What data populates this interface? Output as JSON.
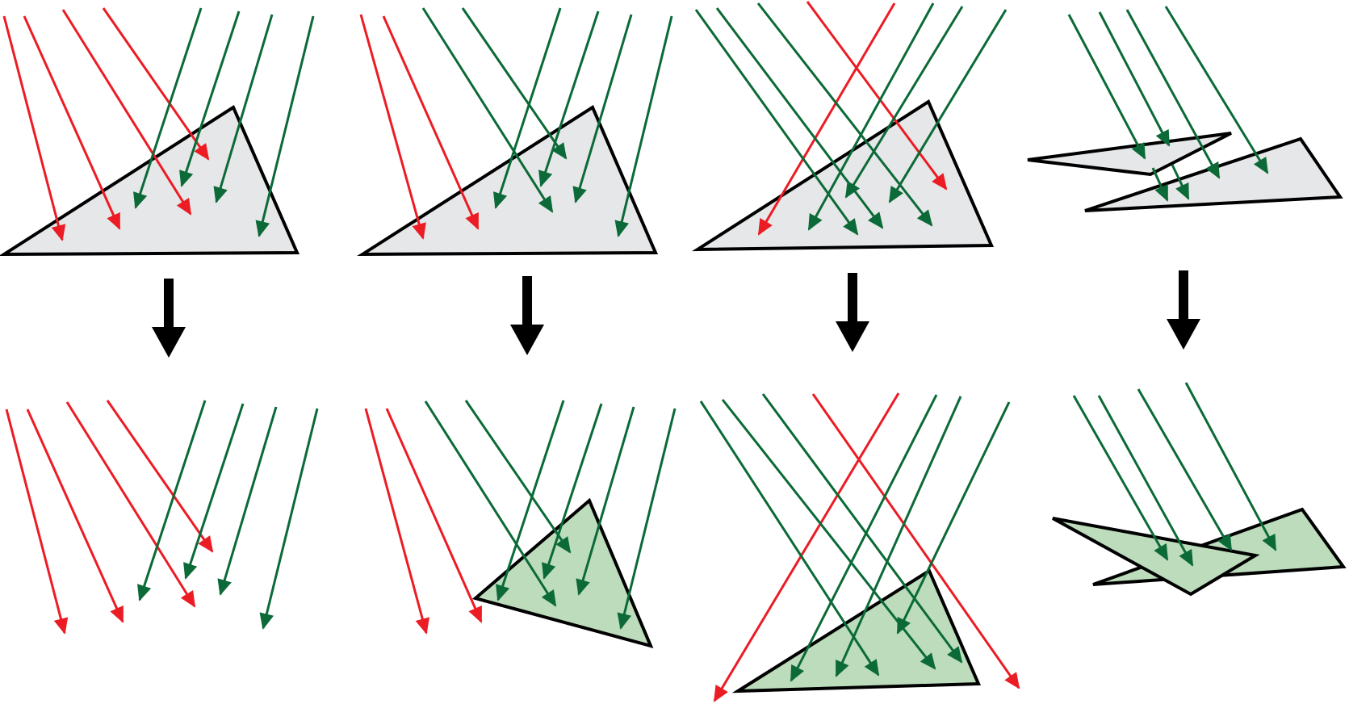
{
  "colors": {
    "background": "#ffffff",
    "outline": "#000000",
    "surface_before": "#e6e7e8",
    "surface_after": "#bcdcbc",
    "ray_valid": "#0b6a37",
    "ray_invalid": "#ec1c24",
    "transition_arrow": "#000000"
  },
  "legend": {
    "ray_valid_meaning": "green",
    "ray_invalid_meaning": "red"
  },
  "panels": [
    {
      "name": "panel-1",
      "before_shape": "triangle",
      "after_shape": "none",
      "red_rays": 4,
      "green_rays": 4
    },
    {
      "name": "panel-2",
      "before_shape": "triangle",
      "after_shape": "triangle",
      "red_rays": 2,
      "green_rays": 6
    },
    {
      "name": "panel-3",
      "before_shape": "triangle",
      "after_shape": "triangle",
      "red_rays": 2,
      "green_rays": 6
    },
    {
      "name": "panel-4",
      "before_shape": "two-triangles",
      "after_shape": "two-triangles",
      "red_rays": 0,
      "green_rays": 4
    }
  ]
}
